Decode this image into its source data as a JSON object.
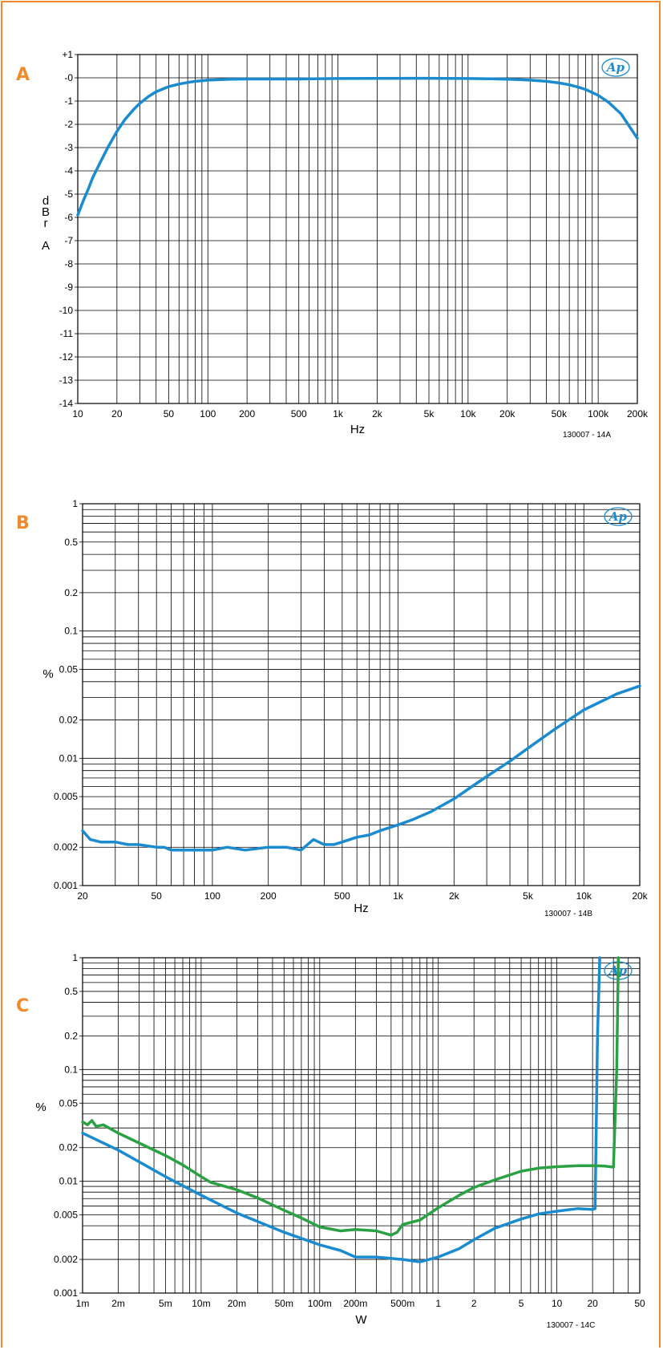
{
  "charts": [
    {
      "label": "A",
      "code": "130007 - 14A",
      "logo": "AP",
      "chart_data": {
        "type": "line",
        "xscale": "log",
        "xlabel": "Hz",
        "ylabel_lines": [
          "d",
          "B",
          "r",
          "",
          "A"
        ],
        "xlim": [
          10,
          200000
        ],
        "ylim": [
          -14,
          1
        ],
        "yscale": "linear",
        "x_ticks": [
          10,
          20,
          50,
          100,
          200,
          500,
          1000,
          2000,
          5000,
          10000,
          20000,
          50000,
          100000,
          200000
        ],
        "x_tick_labels": [
          "10",
          "20",
          "50",
          "100",
          "200",
          "500",
          "1k",
          "2k",
          "5k",
          "10k",
          "20k",
          "50k",
          "100k",
          "200k"
        ],
        "y_ticks": [
          1,
          0,
          -1,
          -2,
          -3,
          -4,
          -5,
          -6,
          -7,
          -8,
          -9,
          -10,
          -11,
          -12,
          -13,
          -14
        ],
        "y_tick_labels": [
          "+1",
          "-0",
          "-1",
          "-2",
          "-3",
          "-4",
          "-5",
          "-6",
          "-7",
          "-8",
          "-9",
          "-10",
          "-11",
          "-12",
          "-13",
          "-14"
        ],
        "series": [
          {
            "color": "#1b8bd0",
            "x": [
              10,
              11,
              12,
              13,
              15,
              17,
              20,
              23,
              27,
              30,
              35,
              40,
              50,
              60,
              70,
              80,
              100,
              150,
              200,
              500,
              1000,
              5000,
              10000,
              15000,
              20000,
              30000,
              40000,
              50000,
              60000,
              70000,
              80000,
              100000,
              120000,
              150000,
              200000
            ],
            "y": [
              -5.9,
              -5.3,
              -4.8,
              -4.3,
              -3.6,
              -3.0,
              -2.3,
              -1.8,
              -1.35,
              -1.1,
              -0.8,
              -0.6,
              -0.38,
              -0.27,
              -0.2,
              -0.15,
              -0.1,
              -0.06,
              -0.05,
              -0.05,
              -0.03,
              -0.02,
              -0.03,
              -0.04,
              -0.06,
              -0.1,
              -0.15,
              -0.22,
              -0.3,
              -0.4,
              -0.5,
              -0.75,
              -1.05,
              -1.55,
              -2.6
            ]
          }
        ]
      }
    },
    {
      "label": "B",
      "code": "130007 - 14B",
      "logo": "AP",
      "chart_data": {
        "type": "line",
        "xscale": "log",
        "yscale": "log",
        "xlabel": "Hz",
        "ylabel_lines": [
          "%"
        ],
        "xlim": [
          20,
          20000
        ],
        "ylim": [
          0.001,
          1
        ],
        "x_ticks": [
          20,
          50,
          100,
          200,
          500,
          1000,
          2000,
          5000,
          10000,
          20000
        ],
        "x_tick_labels": [
          "20",
          "50",
          "100",
          "200",
          "500",
          "1k",
          "2k",
          "5k",
          "10k",
          "20k"
        ],
        "y_ticks": [
          1,
          0.5,
          0.2,
          0.1,
          0.05,
          0.02,
          0.01,
          0.005,
          0.002,
          0.001
        ],
        "y_tick_labels": [
          "1",
          "0.5",
          "0.2",
          "0.1",
          "0.05",
          "0.02",
          "0.01",
          "0.005",
          "0.002",
          "0.001"
        ],
        "series": [
          {
            "color": "#1b8bd0",
            "x": [
              20,
              22,
              25,
              30,
              35,
              40,
              50,
              55,
              60,
              70,
              80,
              90,
              100,
              120,
              150,
              200,
              250,
              300,
              350,
              400,
              450,
              500,
              600,
              700,
              800,
              1000,
              1200,
              1500,
              2000,
              2500,
              3000,
              4000,
              5000,
              7000,
              10000,
              15000,
              20000
            ],
            "y": [
              0.0027,
              0.0023,
              0.0022,
              0.0022,
              0.0021,
              0.0021,
              0.002,
              0.002,
              0.0019,
              0.0019,
              0.0019,
              0.0019,
              0.0019,
              0.002,
              0.0019,
              0.002,
              0.002,
              0.0019,
              0.0023,
              0.0021,
              0.0021,
              0.0022,
              0.0024,
              0.0025,
              0.0027,
              0.003,
              0.0033,
              0.0038,
              0.0048,
              0.006,
              0.0072,
              0.0095,
              0.012,
              0.017,
              0.024,
              0.032,
              0.037
            ]
          }
        ]
      }
    },
    {
      "label": "C",
      "code": "130007 - 14C",
      "logo": "AP",
      "chart_data": {
        "type": "line",
        "xscale": "log",
        "yscale": "log",
        "xlabel": "W",
        "ylabel_lines": [
          "%"
        ],
        "xlim": [
          0.001,
          50
        ],
        "ylim": [
          0.001,
          1
        ],
        "x_ticks": [
          0.001,
          0.002,
          0.005,
          0.01,
          0.02,
          0.05,
          0.1,
          0.2,
          0.5,
          1,
          2,
          5,
          10,
          20,
          50
        ],
        "x_tick_labels": [
          "1m",
          "2m",
          "5m",
          "10m",
          "20m",
          "50m",
          "100m",
          "200m",
          "500m",
          "1",
          "2",
          "5",
          "10",
          "20",
          "50"
        ],
        "y_ticks": [
          1,
          0.5,
          0.2,
          0.1,
          0.05,
          0.02,
          0.01,
          0.005,
          0.002,
          0.001
        ],
        "y_tick_labels": [
          "1",
          "0.5",
          "0.2",
          "0.1",
          "0.05",
          "0.02",
          "0.01",
          "0.005",
          "0.002",
          "0.001"
        ],
        "series": [
          {
            "color": "#1b8bd0",
            "x": [
              0.001,
              0.002,
              0.005,
              0.01,
              0.02,
              0.05,
              0.1,
              0.15,
              0.2,
              0.3,
              0.5,
              0.7,
              1,
              1.5,
              2,
              3,
              5,
              7,
              10,
              15,
              20,
              21,
              22,
              23
            ],
            "y": [
              0.027,
              0.019,
              0.011,
              0.0075,
              0.0052,
              0.0035,
              0.0027,
              0.0024,
              0.0021,
              0.0021,
              0.002,
              0.0019,
              0.0021,
              0.0025,
              0.003,
              0.0038,
              0.0046,
              0.0051,
              0.0054,
              0.0057,
              0.0056,
              0.0057,
              0.2,
              1
            ]
          },
          {
            "color": "#2aa142",
            "x": [
              0.001,
              0.0011,
              0.0012,
              0.0013,
              0.0015,
              0.002,
              0.003,
              0.005,
              0.007,
              0.01,
              0.012,
              0.02,
              0.03,
              0.05,
              0.07,
              0.1,
              0.15,
              0.2,
              0.3,
              0.4,
              0.45,
              0.5,
              0.7,
              1,
              1.5,
              2,
              3,
              5,
              7,
              10,
              15,
              20,
              25,
              30,
              32,
              33
            ],
            "y": [
              0.034,
              0.032,
              0.035,
              0.031,
              0.032,
              0.027,
              0.022,
              0.017,
              0.014,
              0.011,
              0.0098,
              0.0084,
              0.0071,
              0.0055,
              0.0047,
              0.0039,
              0.0036,
              0.0037,
              0.0036,
              0.0033,
              0.0035,
              0.0041,
              0.0045,
              0.0058,
              0.0075,
              0.0088,
              0.0103,
              0.0123,
              0.0131,
              0.0135,
              0.0138,
              0.0138,
              0.0137,
              0.0134,
              0.1,
              1
            ]
          }
        ]
      }
    }
  ]
}
